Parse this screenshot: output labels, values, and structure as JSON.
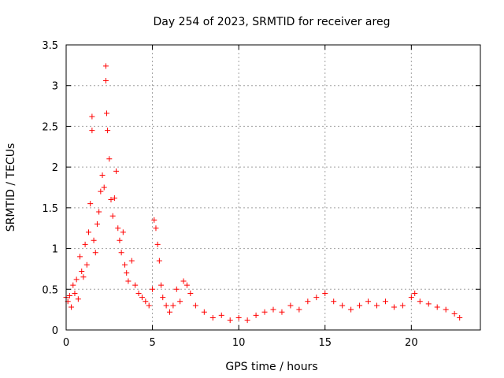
{
  "chart_data": {
    "type": "scatter",
    "title": "Day 254 of 2023, SRMTID for receiver areg",
    "xlabel": "GPS time / hours",
    "ylabel": "SRMTID / TECUs",
    "xlim": [
      0,
      24
    ],
    "ylim": [
      0,
      3.5
    ],
    "xticks": [
      0,
      5,
      10,
      15,
      20
    ],
    "yticks": [
      0,
      0.5,
      1,
      1.5,
      2,
      2.5,
      3,
      3.5
    ],
    "xtick_labels": [
      "0",
      "5",
      "10",
      "15",
      "20"
    ],
    "ytick_labels": [
      "0",
      "0.5",
      "1",
      "1.5",
      "2",
      "2.5",
      "3",
      "3.5"
    ],
    "grid": true,
    "marker": "+",
    "color": "#ff0000",
    "series": [
      {
        "name": "SRMTID",
        "points": [
          [
            0.0,
            0.4
          ],
          [
            0.1,
            0.35
          ],
          [
            0.2,
            0.42
          ],
          [
            0.3,
            0.28
          ],
          [
            0.4,
            0.55
          ],
          [
            0.5,
            0.45
          ],
          [
            0.6,
            0.62
          ],
          [
            0.7,
            0.38
          ],
          [
            0.8,
            0.9
          ],
          [
            0.9,
            0.72
          ],
          [
            1.0,
            0.65
          ],
          [
            1.1,
            1.05
          ],
          [
            1.2,
            0.8
          ],
          [
            1.3,
            1.2
          ],
          [
            1.4,
            1.55
          ],
          [
            1.5,
            2.45
          ],
          [
            1.5,
            2.62
          ],
          [
            1.6,
            1.1
          ],
          [
            1.7,
            0.95
          ],
          [
            1.8,
            1.3
          ],
          [
            1.9,
            1.45
          ],
          [
            2.0,
            1.7
          ],
          [
            2.1,
            1.9
          ],
          [
            2.2,
            1.75
          ],
          [
            2.3,
            3.24
          ],
          [
            2.3,
            3.06
          ],
          [
            2.35,
            2.66
          ],
          [
            2.4,
            2.45
          ],
          [
            2.5,
            2.1
          ],
          [
            2.6,
            1.6
          ],
          [
            2.7,
            1.4
          ],
          [
            2.8,
            1.62
          ],
          [
            2.9,
            1.95
          ],
          [
            3.0,
            1.25
          ],
          [
            3.1,
            1.1
          ],
          [
            3.2,
            0.95
          ],
          [
            3.3,
            1.2
          ],
          [
            3.4,
            0.8
          ],
          [
            3.5,
            0.7
          ],
          [
            3.6,
            0.6
          ],
          [
            3.8,
            0.85
          ],
          [
            4.0,
            0.55
          ],
          [
            4.2,
            0.45
          ],
          [
            4.4,
            0.4
          ],
          [
            4.6,
            0.35
          ],
          [
            4.8,
            0.3
          ],
          [
            5.0,
            0.5
          ],
          [
            5.1,
            1.35
          ],
          [
            5.2,
            1.25
          ],
          [
            5.3,
            1.05
          ],
          [
            5.4,
            0.85
          ],
          [
            5.5,
            0.55
          ],
          [
            5.6,
            0.4
          ],
          [
            5.8,
            0.3
          ],
          [
            6.0,
            0.22
          ],
          [
            6.2,
            0.3
          ],
          [
            6.4,
            0.5
          ],
          [
            6.6,
            0.35
          ],
          [
            6.8,
            0.6
          ],
          [
            7.0,
            0.55
          ],
          [
            7.2,
            0.45
          ],
          [
            7.5,
            0.3
          ],
          [
            8.0,
            0.22
          ],
          [
            8.5,
            0.15
          ],
          [
            9.0,
            0.18
          ],
          [
            9.5,
            0.12
          ],
          [
            10.0,
            0.15
          ],
          [
            10.5,
            0.12
          ],
          [
            11.0,
            0.18
          ],
          [
            11.5,
            0.22
          ],
          [
            12.0,
            0.25
          ],
          [
            12.5,
            0.22
          ],
          [
            13.0,
            0.3
          ],
          [
            13.5,
            0.25
          ],
          [
            14.0,
            0.35
          ],
          [
            14.5,
            0.4
          ],
          [
            15.0,
            0.45
          ],
          [
            15.5,
            0.35
          ],
          [
            16.0,
            0.3
          ],
          [
            16.5,
            0.25
          ],
          [
            17.0,
            0.3
          ],
          [
            17.5,
            0.35
          ],
          [
            18.0,
            0.3
          ],
          [
            18.5,
            0.35
          ],
          [
            19.0,
            0.28
          ],
          [
            19.5,
            0.3
          ],
          [
            20.0,
            0.4
          ],
          [
            20.2,
            0.45
          ],
          [
            20.5,
            0.35
          ],
          [
            21.0,
            0.32
          ],
          [
            21.5,
            0.28
          ],
          [
            22.0,
            0.25
          ],
          [
            22.5,
            0.2
          ],
          [
            22.8,
            0.15
          ]
        ]
      }
    ]
  }
}
